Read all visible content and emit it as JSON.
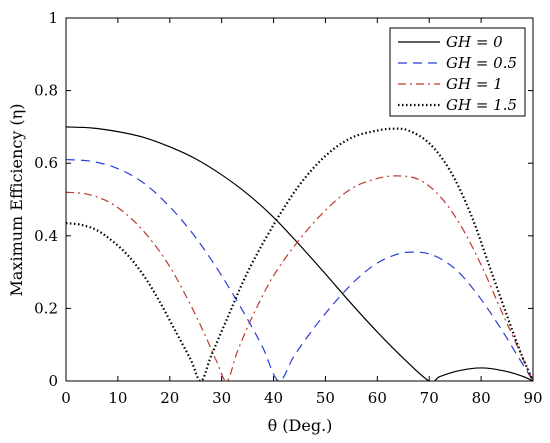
{
  "chart_data": {
    "type": "line",
    "xlabel": "θ (Deg.)",
    "ylabel": "Maximum Efficiency (η)",
    "xlim": [
      0,
      90
    ],
    "ylim": [
      0,
      1
    ],
    "x_ticks": [
      0,
      10,
      20,
      30,
      40,
      50,
      60,
      70,
      80,
      90
    ],
    "y_ticks": [
      0,
      0.2,
      0.4,
      0.6,
      0.8,
      1
    ],
    "x_tick_labels": [
      "0",
      "10",
      "20",
      "30",
      "40",
      "50",
      "60",
      "70",
      "80",
      "90"
    ],
    "y_tick_labels": [
      "0",
      "0.2",
      "0.4",
      "0.6",
      "0.8",
      "1"
    ],
    "grid": false,
    "legend_position": "top-right",
    "series": [
      {
        "name": "GH = 0",
        "style": "solid",
        "color": "#000000",
        "x": [
          0,
          5,
          10,
          15,
          20,
          25,
          30,
          35,
          40,
          45,
          50,
          55,
          60,
          65,
          70,
          72,
          75,
          78,
          80,
          82,
          85,
          88,
          90
        ],
        "y": [
          0.7,
          0.697,
          0.687,
          0.671,
          0.645,
          0.612,
          0.568,
          0.515,
          0.451,
          0.375,
          0.295,
          0.213,
          0.135,
          0.063,
          0.0,
          0.012,
          0.026,
          0.034,
          0.036,
          0.034,
          0.026,
          0.013,
          0.0
        ]
      },
      {
        "name": "GH = 0.5",
        "style": "dashed",
        "color": "#2a3fd8",
        "x": [
          0,
          5,
          10,
          15,
          20,
          25,
          30,
          35,
          38,
          41,
          44,
          48,
          52,
          56,
          60,
          64,
          67,
          70,
          73,
          76,
          80,
          84,
          87,
          90
        ],
        "y": [
          0.61,
          0.605,
          0.585,
          0.545,
          0.48,
          0.395,
          0.29,
          0.17,
          0.09,
          0.0,
          0.07,
          0.15,
          0.22,
          0.28,
          0.325,
          0.35,
          0.355,
          0.35,
          0.33,
          0.295,
          0.225,
          0.14,
          0.07,
          0.0
        ]
      },
      {
        "name": "GH = 1",
        "style": "dashdot",
        "color": "#c0392b",
        "x": [
          0,
          4,
          8,
          12,
          16,
          20,
          24,
          27,
          29,
          31,
          33,
          36,
          40,
          45,
          50,
          55,
          60,
          64,
          68,
          72,
          76,
          80,
          84,
          87,
          90
        ],
        "y": [
          0.52,
          0.515,
          0.495,
          0.455,
          0.395,
          0.315,
          0.21,
          0.12,
          0.055,
          0.0,
          0.08,
          0.18,
          0.29,
          0.39,
          0.47,
          0.53,
          0.558,
          0.565,
          0.555,
          0.51,
          0.43,
          0.32,
          0.19,
          0.095,
          0.0
        ]
      },
      {
        "name": "GH = 1.5",
        "style": "dotted",
        "color": "#000000",
        "x": [
          0,
          3,
          6,
          9,
          12,
          15,
          18,
          21,
          24,
          26,
          28,
          31,
          35,
          40,
          45,
          50,
          55,
          60,
          63,
          66,
          70,
          74,
          78,
          82,
          86,
          88,
          90
        ],
        "y": [
          0.435,
          0.43,
          0.415,
          0.385,
          0.345,
          0.29,
          0.22,
          0.14,
          0.06,
          0.0,
          0.07,
          0.17,
          0.3,
          0.43,
          0.54,
          0.62,
          0.67,
          0.69,
          0.695,
          0.69,
          0.655,
          0.58,
          0.46,
          0.3,
          0.14,
          0.065,
          0.0
        ]
      }
    ]
  }
}
